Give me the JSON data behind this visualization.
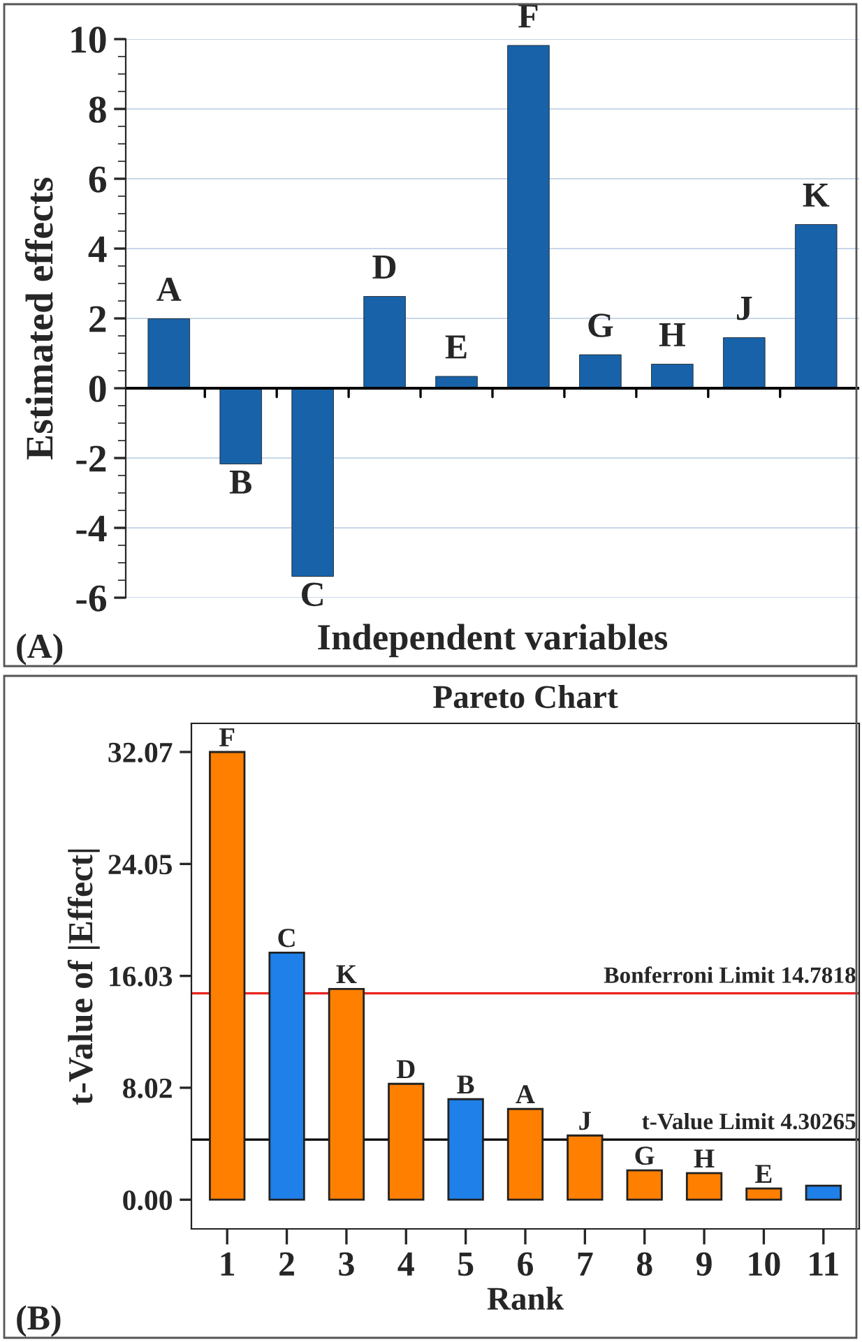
{
  "chart_data": [
    {
      "type": "bar",
      "ylabel": "Estimated effects",
      "xlabel": "Independent variables",
      "categories": [
        "A",
        "B",
        "C",
        "D",
        "E",
        "F",
        "G",
        "H",
        "J",
        "K"
      ],
      "values": [
        1.99,
        -2.17,
        -5.39,
        2.63,
        0.34,
        9.82,
        0.96,
        0.69,
        1.45,
        4.69
      ],
      "color": "#1762a8",
      "ylim": [
        -6,
        10
      ],
      "yticks": [
        -6,
        -4,
        -2,
        0,
        2,
        4,
        6,
        8,
        10
      ],
      "grid": "y",
      "annotations": [
        "(A)"
      ]
    },
    {
      "type": "bar",
      "title": "Pareto Chart",
      "ylabel": "t-Value of |Effect|",
      "xlabel": "Rank",
      "categories": [
        "1",
        "2",
        "3",
        "4",
        "5",
        "6",
        "7",
        "8",
        "9",
        "10",
        "11"
      ],
      "values": [
        32.07,
        17.7,
        15.1,
        8.3,
        7.2,
        6.5,
        4.6,
        2.1,
        1.9,
        0.8,
        1.0
      ],
      "colors": [
        "#ff7f00",
        "#1e80e8",
        "#ff7f00",
        "#ff7f00",
        "#1e80e8",
        "#ff7f00",
        "#ff7f00",
        "#ff7f00",
        "#ff7f00",
        "#ff7f00",
        "#1e80e8"
      ],
      "ylim": [
        -2.09,
        34.12
      ],
      "yticks": [
        {
          "value": 0,
          "label": "0.00"
        },
        {
          "value": 8.02,
          "label": "8.02"
        },
        {
          "value": 16.03,
          "label": "16.03"
        },
        {
          "value": 24.05,
          "label": "24.05"
        },
        {
          "value": 32.07,
          "label": "32.07"
        }
      ],
      "grid": false,
      "ref_lines": [
        {
          "axis": "y",
          "value": 14.7818,
          "label": "Bonferroni Limit 14.7818",
          "color": "#e8231f"
        },
        {
          "axis": "y",
          "value": 4.30265,
          "label": "t-Value Limit 4.30265",
          "color": "#000000"
        }
      ],
      "annotations": [
        {
          "text": "F",
          "x": "1",
          "y": 32.07
        },
        {
          "text": "C",
          "x": "2",
          "y": 17.7
        },
        {
          "text": "K",
          "x": "3",
          "y": 15.1
        },
        {
          "text": "D",
          "x": "4",
          "y": 8.3
        },
        {
          "text": "B",
          "x": "5",
          "y": 7.2
        },
        {
          "text": "A",
          "x": "6",
          "y": 6.5
        },
        {
          "text": "J",
          "x": "7",
          "y": 4.6
        },
        {
          "text": "G",
          "x": "8",
          "y": 2.1
        },
        {
          "text": "H",
          "x": "9",
          "y": 1.9
        },
        {
          "text": "E",
          "x": "10",
          "y": 0.8
        },
        "(B)"
      ]
    }
  ]
}
